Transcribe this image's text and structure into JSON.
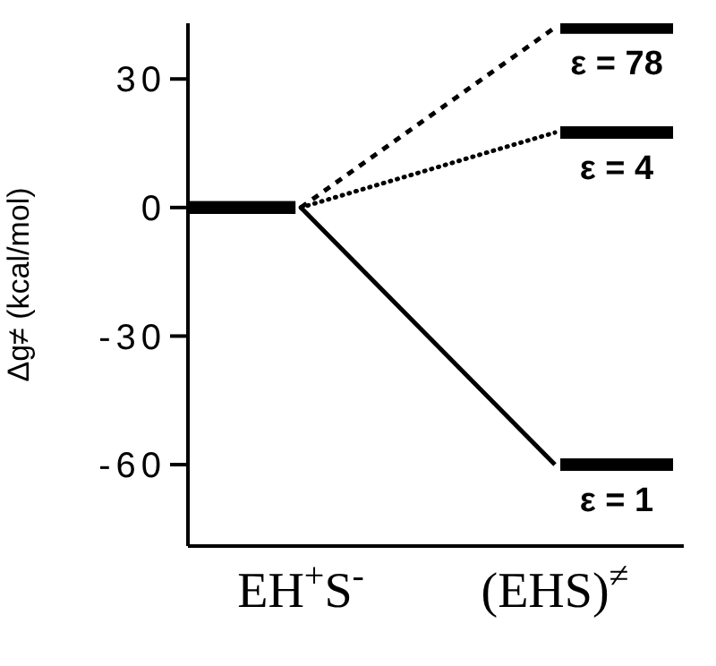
{
  "chart_data": {
    "type": "line",
    "ylabel": "Δg≠ (kcal/mol)",
    "categories": [
      "EH$^{+}$S$^{-}$",
      "(EHS)$^{≠}$"
    ],
    "series": [
      {
        "name": "ε = 78",
        "color": "#000000",
        "values": [
          0,
          42
        ],
        "line_style": "dashed"
      },
      {
        "name": "ε = 4",
        "color": "#000000",
        "values": [
          0,
          17.5
        ],
        "line_style": "dotted"
      },
      {
        "name": "ε = 1",
        "color": "#000000",
        "values": [
          0,
          -60
        ],
        "line_style": "solid"
      }
    ],
    "ylim": [
      -79,
      43
    ],
    "yticks": [
      -60,
      -30,
      0,
      30
    ],
    "grid": false,
    "legend": "right"
  }
}
